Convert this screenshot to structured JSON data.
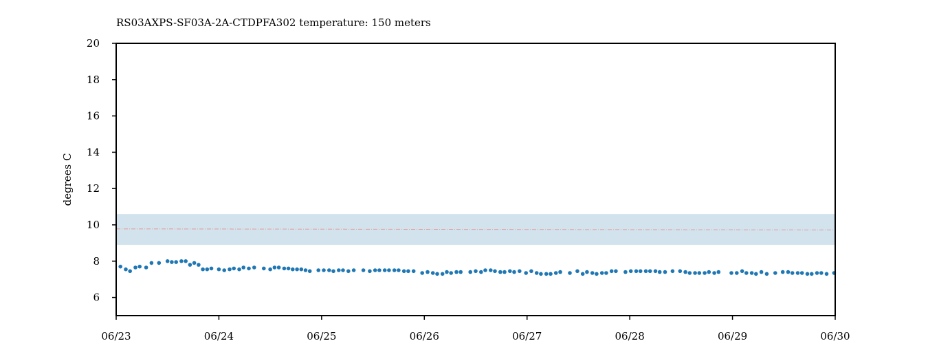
{
  "chart_data": {
    "type": "scatter",
    "title": "RS03AXPS-SF03A-2A-CTDPFA302 temperature: 150 meters",
    "xlabel": "",
    "ylabel": "degrees C",
    "xlim": [
      "2023-06-23T00:00",
      "2023-06-30T00:00"
    ],
    "ylim": [
      5,
      20
    ],
    "x_ticks": [
      "06/23",
      "06/24",
      "06/25",
      "06/26",
      "06/27",
      "06/28",
      "06/29",
      "06/30"
    ],
    "y_ticks": [
      6,
      8,
      10,
      12,
      14,
      16,
      18,
      20
    ],
    "grid": false,
    "legend": "none",
    "band": {
      "lower": 8.9,
      "upper": 10.6,
      "color": "#d2e3ee"
    },
    "mean_line": {
      "start": 9.78,
      "end": 9.72,
      "color": "#e39a9a"
    },
    "point_color": "#1f77b4",
    "series": [
      {
        "x": [
          "2023-06-23T01:00",
          "2023-06-23T02:15",
          "2023-06-23T03:15",
          "2023-06-23T04:30",
          "2023-06-23T05:30",
          "2023-06-23T07:00",
          "2023-06-23T08:15",
          "2023-06-23T10:00",
          "2023-06-23T12:00",
          "2023-06-23T13:00",
          "2023-06-23T14:00",
          "2023-06-23T15:15",
          "2023-06-23T16:15",
          "2023-06-23T17:15",
          "2023-06-23T18:15",
          "2023-06-23T19:15",
          "2023-06-23T20:15",
          "2023-06-23T21:15",
          "2023-06-23T22:15",
          "2023-06-24T00:00",
          "2023-06-24T01:15",
          "2023-06-24T02:30",
          "2023-06-24T03:30",
          "2023-06-24T04:45",
          "2023-06-24T05:45",
          "2023-06-24T07:00",
          "2023-06-24T08:15",
          "2023-06-24T10:30",
          "2023-06-24T12:00",
          "2023-06-24T13:00",
          "2023-06-24T14:00",
          "2023-06-24T15:15",
          "2023-06-24T16:15",
          "2023-06-24T17:15",
          "2023-06-24T18:15",
          "2023-06-24T19:15",
          "2023-06-24T20:15",
          "2023-06-24T21:15",
          "2023-06-24T23:15",
          "2023-06-25T00:30",
          "2023-06-25T01:45",
          "2023-06-25T02:45",
          "2023-06-25T04:00",
          "2023-06-25T05:00",
          "2023-06-25T06:15",
          "2023-06-25T07:30",
          "2023-06-25T09:45",
          "2023-06-25T11:15",
          "2023-06-25T12:30",
          "2023-06-25T13:30",
          "2023-06-25T14:45",
          "2023-06-25T15:45",
          "2023-06-25T17:00",
          "2023-06-25T18:00",
          "2023-06-25T19:15",
          "2023-06-25T20:15",
          "2023-06-25T21:30",
          "2023-06-25T23:30",
          "2023-06-26T00:45",
          "2023-06-26T02:00",
          "2023-06-26T03:00",
          "2023-06-26T04:15",
          "2023-06-26T05:15",
          "2023-06-26T06:15",
          "2023-06-26T07:30",
          "2023-06-26T08:30",
          "2023-06-26T10:45",
          "2023-06-26T12:00",
          "2023-06-26T13:15",
          "2023-06-26T14:15",
          "2023-06-26T15:30",
          "2023-06-26T16:30",
          "2023-06-26T17:45",
          "2023-06-26T18:45",
          "2023-06-26T20:00",
          "2023-06-26T21:00",
          "2023-06-26T22:15",
          "2023-06-26T23:45",
          "2023-06-27T01:00",
          "2023-06-27T02:15",
          "2023-06-27T03:15",
          "2023-06-27T04:30",
          "2023-06-27T05:30",
          "2023-06-27T06:45",
          "2023-06-27T07:45",
          "2023-06-27T10:00",
          "2023-06-27T11:45",
          "2023-06-27T13:00",
          "2023-06-27T14:00",
          "2023-06-27T15:15",
          "2023-06-27T16:15",
          "2023-06-27T17:30",
          "2023-06-27T18:30",
          "2023-06-27T19:45",
          "2023-06-27T20:45",
          "2023-06-27T23:00",
          "2023-06-28T00:15",
          "2023-06-28T01:30",
          "2023-06-28T02:30",
          "2023-06-28T03:45",
          "2023-06-28T04:45",
          "2023-06-28T06:00",
          "2023-06-28T07:00",
          "2023-06-28T08:15",
          "2023-06-28T10:00",
          "2023-06-28T11:45",
          "2023-06-28T13:00",
          "2023-06-28T14:00",
          "2023-06-28T15:15",
          "2023-06-28T16:15",
          "2023-06-28T17:30",
          "2023-06-28T18:30",
          "2023-06-28T19:45",
          "2023-06-28T20:45",
          "2023-06-28T23:45",
          "2023-06-29T01:00",
          "2023-06-29T02:15",
          "2023-06-29T03:15",
          "2023-06-29T04:30",
          "2023-06-29T05:30",
          "2023-06-29T06:45",
          "2023-06-29T08:00",
          "2023-06-29T10:00",
          "2023-06-29T11:45",
          "2023-06-29T13:00",
          "2023-06-29T14:00",
          "2023-06-29T15:15",
          "2023-06-29T16:15",
          "2023-06-29T17:30",
          "2023-06-29T18:30",
          "2023-06-29T19:45",
          "2023-06-29T20:45",
          "2023-06-29T22:00",
          "2023-06-29T23:45"
        ],
        "y": [
          7.7,
          7.55,
          7.45,
          7.65,
          7.7,
          7.65,
          7.9,
          7.9,
          8.0,
          7.95,
          7.95,
          8.0,
          8.0,
          7.8,
          7.9,
          7.8,
          7.55,
          7.55,
          7.6,
          7.55,
          7.5,
          7.55,
          7.6,
          7.55,
          7.65,
          7.6,
          7.65,
          7.6,
          7.55,
          7.65,
          7.65,
          7.6,
          7.6,
          7.55,
          7.55,
          7.55,
          7.5,
          7.45,
          7.5,
          7.5,
          7.5,
          7.45,
          7.5,
          7.5,
          7.45,
          7.5,
          7.5,
          7.45,
          7.5,
          7.5,
          7.5,
          7.5,
          7.5,
          7.5,
          7.45,
          7.45,
          7.45,
          7.35,
          7.4,
          7.35,
          7.3,
          7.3,
          7.4,
          7.35,
          7.4,
          7.4,
          7.4,
          7.45,
          7.4,
          7.5,
          7.5,
          7.45,
          7.4,
          7.4,
          7.45,
          7.4,
          7.45,
          7.35,
          7.45,
          7.35,
          7.3,
          7.3,
          7.3,
          7.35,
          7.4,
          7.35,
          7.45,
          7.3,
          7.4,
          7.35,
          7.3,
          7.35,
          7.35,
          7.45,
          7.45,
          7.4,
          7.45,
          7.45,
          7.45,
          7.45,
          7.45,
          7.45,
          7.4,
          7.4,
          7.45,
          7.45,
          7.4,
          7.35,
          7.35,
          7.35,
          7.35,
          7.4,
          7.35,
          7.4,
          7.35,
          7.35,
          7.45,
          7.35,
          7.35,
          7.3,
          7.4,
          7.3,
          7.35,
          7.4,
          7.4,
          7.35,
          7.35,
          7.35,
          7.3,
          7.3,
          7.35,
          7.35,
          7.3,
          7.35
        ]
      }
    ]
  }
}
